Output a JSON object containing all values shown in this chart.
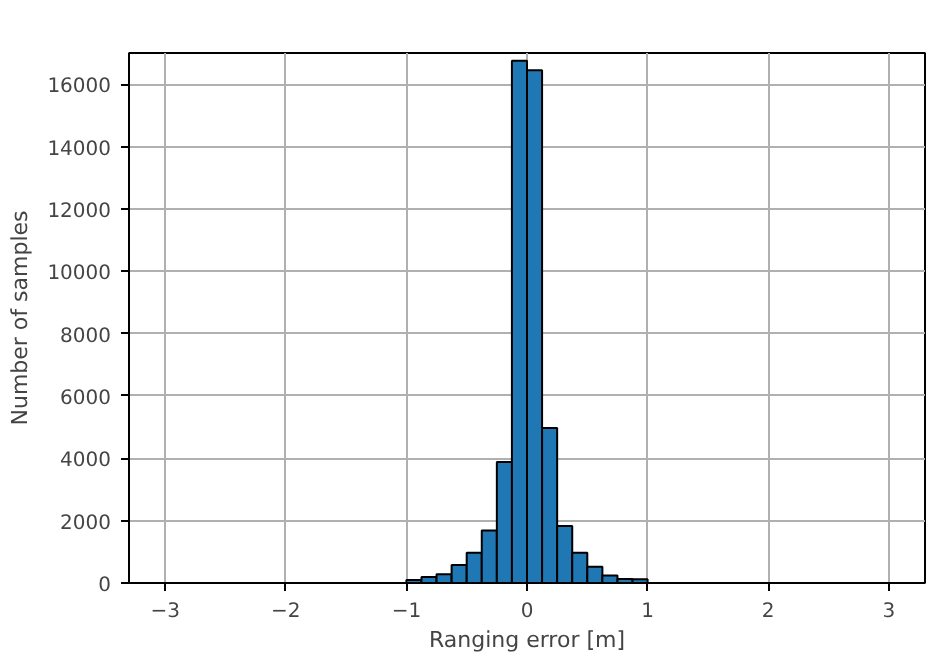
{
  "chart_data": {
    "type": "histogram",
    "xlabel": "Ranging error [m]",
    "ylabel": "Number of samples",
    "color": "#1f77b4",
    "bins": [
      -1.5,
      -1.375,
      -1.25,
      -1.125,
      -1.0,
      -0.875,
      -0.75,
      -0.625,
      -0.5,
      -0.375,
      -0.25,
      -0.125,
      0.0,
      0.125,
      0.25,
      0.375,
      0.5,
      0.625,
      0.75,
      0.875,
      1.0,
      1.125,
      1.25
    ],
    "values": [
      null,
      null,
      null,
      null,
      100,
      190,
      280,
      580,
      970,
      1680,
      3880,
      16750,
      16450,
      4970,
      1830,
      970,
      520,
      240,
      130,
      120,
      null,
      null
    ],
    "xlim": [
      -3.3,
      3.3
    ],
    "ylim": [
      0,
      17000
    ],
    "xticks": [
      {
        "value": -3,
        "label": "−3"
      },
      {
        "value": -2,
        "label": "−2"
      },
      {
        "value": -1,
        "label": "−1"
      },
      0,
      1,
      2,
      3
    ],
    "yticks": [
      0,
      2000,
      4000,
      6000,
      8000,
      10000,
      12000,
      14000,
      16000
    ],
    "grid": true
  }
}
